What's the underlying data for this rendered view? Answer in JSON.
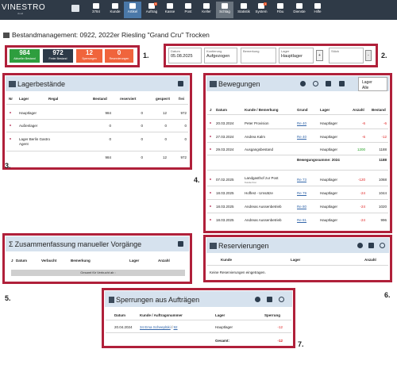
{
  "app": {
    "logo": "VINESTRO",
    "logo_sub": "cloud"
  },
  "nav": {
    "items": [
      {
        "label": "3784"
      },
      {
        "label": "Kunde"
      },
      {
        "label": "Artikel"
      },
      {
        "label": "Auftrag",
        "badge": "5"
      },
      {
        "label": "Kasse"
      },
      {
        "label": "Post"
      },
      {
        "label": "Keller"
      },
      {
        "label": "Schlag"
      },
      {
        "label": "Statistik"
      },
      {
        "label": "System",
        "badge": "1"
      },
      {
        "label": "Fibu"
      },
      {
        "label": "Dienste"
      },
      {
        "label": "Hilfe"
      }
    ]
  },
  "page": {
    "title": "Bestandmanagement: 0922, 2022er Riesling \"Grand Cru\" Trocken"
  },
  "markers": {
    "m1": "1.",
    "m2": "2.",
    "m3": "3.",
    "m4": "4.",
    "m5": "5.",
    "m6": "6.",
    "m7": "7."
  },
  "stats": [
    {
      "value": "984",
      "label": "Aktueller Bestand",
      "color": "#2e9e3e"
    },
    {
      "value": "972",
      "label": "Freier Bestand",
      "color": "#2d3a48"
    },
    {
      "value": "12",
      "label": "Sperrungen",
      "color": "#f0643c"
    },
    {
      "value": "0",
      "label": "Reservierungen",
      "color": "#f0643c"
    }
  ],
  "filters": {
    "datum": {
      "label": "Datum",
      "value": "05.08.2025"
    },
    "kontierung": {
      "label": "Kontierung",
      "value": "Aufgezogen"
    },
    "bemerkung": {
      "label": "Bemerkung",
      "value": ""
    },
    "lager": {
      "label": "Lager",
      "value": "Hauptlager"
    },
    "plus": "+",
    "stueck": {
      "label": "Stück",
      "value": ""
    },
    "minus": "-"
  },
  "lagerbestaende": {
    "title": "Lagerbestände",
    "headers": [
      "Nr",
      "Lager",
      "Regal",
      "Bestand",
      "reserviert",
      "gesperrt",
      "frei"
    ],
    "rows": [
      {
        "lager": "Hauptlager",
        "bestand": "984",
        "reserviert": "0",
        "gesperrt": "12",
        "frei": "972"
      },
      {
        "lager": "Außenlager",
        "bestand": "0",
        "reserviert": "0",
        "gesperrt": "0",
        "frei": "0"
      },
      {
        "lager": "Lager Berlin Gastro Agent",
        "bestand": "0",
        "reserviert": "0",
        "gesperrt": "0",
        "frei": "0"
      }
    ],
    "totals": {
      "bestand": "984",
      "reserviert": "0",
      "gesperrt": "12",
      "frei": "972"
    }
  },
  "bewegungen": {
    "title": "Bewegungen",
    "lager_button": {
      "label": "Lager",
      "value": "Alle"
    },
    "headers": [
      "J",
      "Datum",
      "Kunde / Bemerkung",
      "Grund",
      "Lager",
      "Anzahl",
      "Bestand"
    ],
    "rows": [
      {
        "datum": "20.03.2024",
        "kunde": "Peter Provision",
        "grund": "Re 40",
        "lager": "Hauptlager",
        "anzahl": "-6",
        "bestand": "-6"
      },
      {
        "datum": "27.03.2024",
        "kunde": "Andrea Kalm",
        "grund": "Re 40",
        "lager": "Hauptlager",
        "anzahl": "-6",
        "bestand": "-12"
      },
      {
        "datum": "29.03.2024",
        "kunde": "Ausgangsbestand",
        "grund": "",
        "lager": "Hauptlager",
        "anzahl": "1200",
        "bestand": "1188"
      }
    ],
    "summe": {
      "label": "Bewegungssumme: 2024",
      "value": "1188"
    },
    "rows2": [
      {
        "datum": "07.02.2025",
        "kunde": "Landgasthof zur Post",
        "sub": "Kunde Frei",
        "grund": "Re 73",
        "lager": "Hauptlager",
        "anzahl": "-120",
        "bestand": "1068"
      },
      {
        "datum": "18.03.2025",
        "kunde": "Hoffest - Umsätze",
        "sub": "",
        "grund": "Re 79",
        "lager": "Hauptlager",
        "anzahl": "-24",
        "bestand": "1044"
      },
      {
        "datum": "18.03.2025",
        "kunde": "Andreas Aussenbetrieb",
        "sub": "",
        "grund": "Re 80",
        "lager": "Hauptlager",
        "anzahl": "-24",
        "bestand": "1020"
      },
      {
        "datum": "18.03.2025",
        "kunde": "Andreas Aussenbetrieb",
        "sub": "",
        "grund": "Re 81",
        "lager": "Hauptlager",
        "anzahl": "-24",
        "bestand": "996"
      }
    ]
  },
  "zusammenfassung": {
    "title": "Zusammenfassung manueller Vorgänge",
    "headers": [
      "J",
      "Datum",
      "Verbucht",
      "Bemerkung",
      "Lager",
      "Anzahl"
    ],
    "sum_label": "Gesamt für Verbucht ab :"
  },
  "reservierungen": {
    "title": "Reservierungen",
    "headers": [
      "Kunde",
      "Lager",
      "Anzahl"
    ],
    "empty": "Keine Reservierungen eingetragen."
  },
  "sperrungen": {
    "title": "Sperrungen aus Aufträgen",
    "headers": [
      "Datum",
      "Kunde / Auftragsnummer",
      "Lager",
      "Sperrung"
    ],
    "row": {
      "datum": "20.04.2024",
      "kunde": "34 Ema Scheeplüki",
      "sep": " / ",
      "auftrag": "92",
      "lager": "Hauptlager",
      "sperrung": "-12"
    },
    "gesamt_label": "Gesamt:",
    "gesamt_value": "-12"
  }
}
